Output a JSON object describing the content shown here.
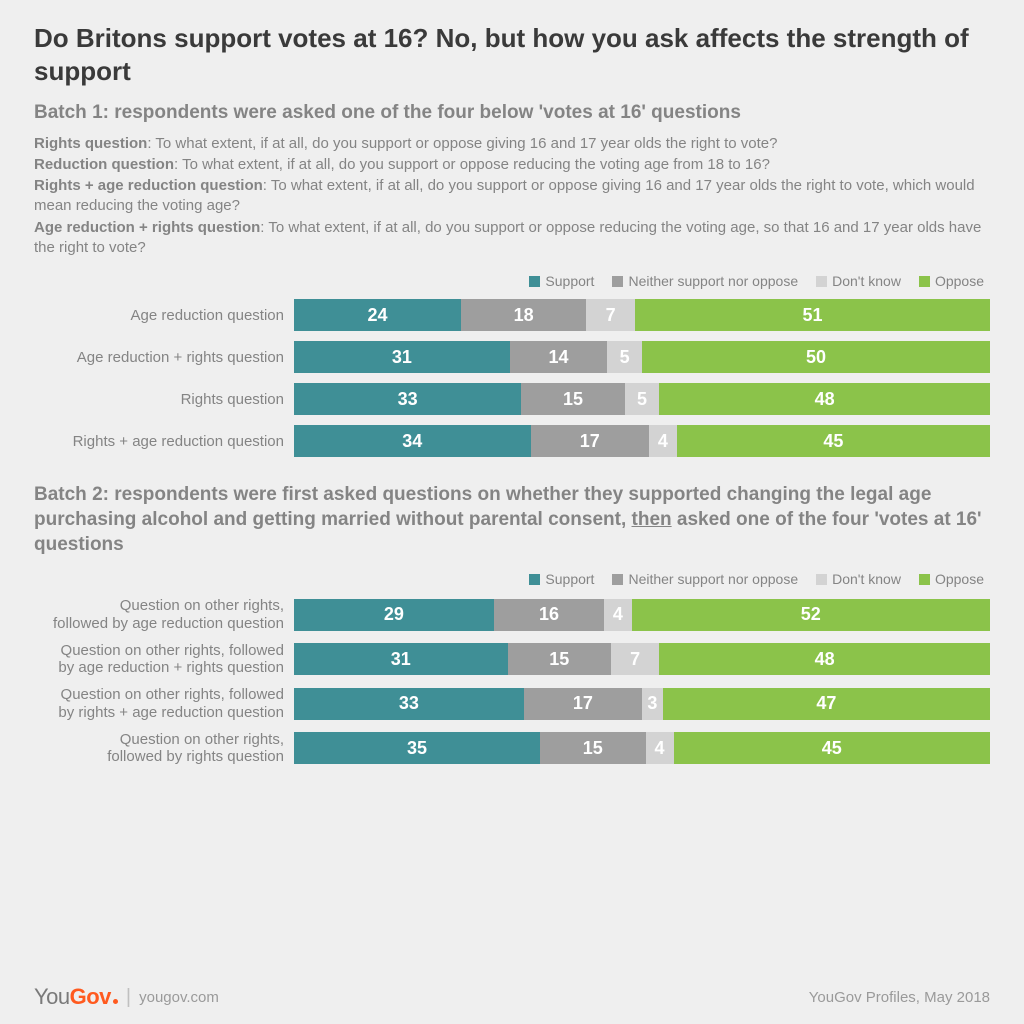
{
  "colors": {
    "support": "#3f8f96",
    "neither": "#9e9e9e",
    "dontknow": "#d3d3d3",
    "oppose": "#8bc34a",
    "background": "#efefef",
    "title_text": "#3a3a3a",
    "body_text": "#848484"
  },
  "title": "Do Britons support votes at 16? No, but how you ask affects the strength of support",
  "batch1": {
    "header": "Batch 1: respondents were asked one of the four below 'votes at 16' questions",
    "questions": [
      {
        "label": "Rights question",
        "text": ": To what extent, if at all, do you support or oppose giving 16 and 17 year olds the right to vote?"
      },
      {
        "label": "Reduction question",
        "text": ": To what extent, if at all, do you support or oppose reducing the voting age from 18 to 16?"
      },
      {
        "label": "Rights + age reduction question",
        "text": ": To what extent, if at all, do you support or oppose giving 16 and 17 year olds the right to vote, which would mean reducing the voting age?"
      },
      {
        "label": "Age reduction + rights question",
        "text": ": To what extent, if at all, do you support or oppose reducing the voting age, so that 16 and 17 year olds have the right to vote?"
      }
    ],
    "label_width": 260,
    "rows": [
      {
        "label": "Age reduction question",
        "values": [
          24,
          18,
          7,
          51
        ]
      },
      {
        "label": "Age reduction + rights question",
        "values": [
          31,
          14,
          5,
          50
        ]
      },
      {
        "label": "Rights question",
        "values": [
          33,
          15,
          5,
          48
        ]
      },
      {
        "label": "Rights + age reduction question",
        "values": [
          34,
          17,
          4,
          45
        ]
      }
    ]
  },
  "batch2": {
    "header_parts": [
      "Batch 2: respondents were first asked questions on whether they supported changing the legal age purchasing alcohol and getting married without parental consent, ",
      "then",
      " asked one of the four 'votes at 16' questions"
    ],
    "label_width": 260,
    "rows": [
      {
        "label": "Question on other rights,\nfollowed by age reduction question",
        "values": [
          29,
          16,
          4,
          52
        ]
      },
      {
        "label": "Question on other rights, followed\nby age reduction + rights question",
        "values": [
          31,
          15,
          7,
          48
        ]
      },
      {
        "label": "Question on other rights, followed\nby rights + age reduction question",
        "values": [
          33,
          17,
          3,
          47
        ]
      },
      {
        "label": "Question on other rights,\nfollowed by rights question",
        "values": [
          35,
          15,
          4,
          45
        ]
      }
    ]
  },
  "legend": {
    "support": "Support",
    "neither": "Neither support nor oppose",
    "dontknow": "Don't know",
    "oppose": "Oppose"
  },
  "footer": {
    "logo_you": "You",
    "logo_gov": "Gov",
    "site": "yougov.com",
    "source": "YouGov Profiles, May 2018"
  }
}
